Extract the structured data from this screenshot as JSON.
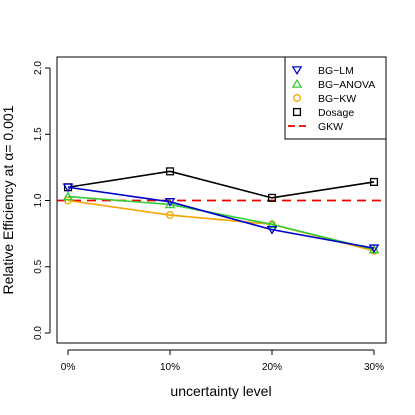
{
  "chart_data": {
    "type": "line",
    "xlabel": "uncertainty level",
    "ylabel_prefix": "Relative Efficiency at",
    "ylabel_alpha": "α= 0.001",
    "categories": [
      "0%",
      "10%",
      "20%",
      "30%"
    ],
    "ylim": [
      0.0,
      2.0
    ],
    "yticks": [
      "0.0",
      "0.5",
      "1.0",
      "1.5",
      "2.0"
    ],
    "legend_position": "top-right",
    "series": [
      {
        "name": "BG−LM",
        "color": "#0000cc",
        "marker": "triangle-down",
        "values": [
          1.1,
          0.99,
          0.78,
          0.64
        ]
      },
      {
        "name": "BG−ANOVA",
        "color": "#33cc33",
        "marker": "triangle-up",
        "values": [
          1.03,
          0.97,
          0.82,
          0.63
        ]
      },
      {
        "name": "BG−KW",
        "color": "#f5a500",
        "marker": "circle",
        "values": [
          1.0,
          0.89,
          0.82,
          0.62
        ]
      },
      {
        "name": "Dosage",
        "color": "#000000",
        "marker": "square",
        "values": [
          1.1,
          1.22,
          1.02,
          1.14
        ]
      }
    ],
    "reference_line": {
      "name": "GKW",
      "value": 1.0,
      "color": "#ee0000",
      "style": "dashed"
    }
  }
}
